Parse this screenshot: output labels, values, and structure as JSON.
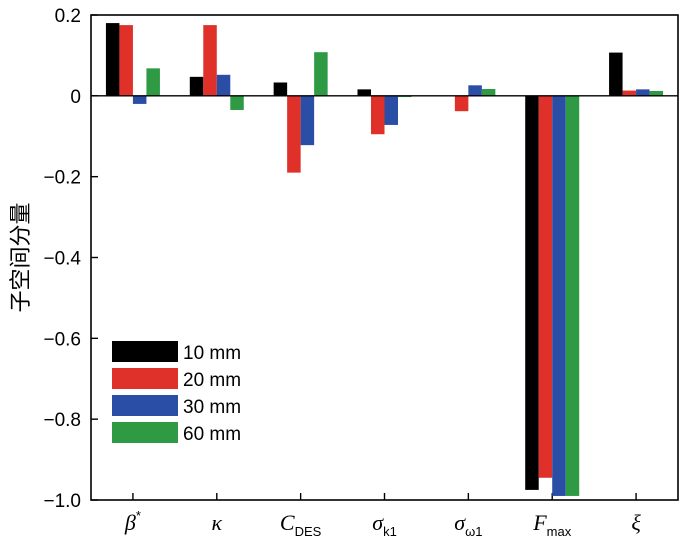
{
  "chart_data": {
    "type": "bar",
    "title": "",
    "xlabel": "",
    "ylabel": "子空间分量",
    "ylim": [
      -1.0,
      0.2
    ],
    "yticks": [
      {
        "value": 0.2,
        "label": "0.2"
      },
      {
        "value": 0.0,
        "label": "0"
      },
      {
        "value": -0.2,
        "label": "−0.2"
      },
      {
        "value": -0.4,
        "label": "−0.4"
      },
      {
        "value": -0.6,
        "label": "−0.6"
      },
      {
        "value": -0.8,
        "label": "−0.8"
      },
      {
        "value": -1.0,
        "label": "−1.0"
      }
    ],
    "categories": [
      {
        "base": "β",
        "sup": "*",
        "sub": ""
      },
      {
        "base": "κ",
        "sup": "",
        "sub": ""
      },
      {
        "base": "C",
        "sup": "",
        "sub": "DES"
      },
      {
        "base": "σ",
        "sup": "",
        "sub": "k1"
      },
      {
        "base": "σ",
        "sup": "",
        "sub": "ω1"
      },
      {
        "base": "F",
        "sup": "",
        "sub": "max"
      },
      {
        "base": "ξ",
        "sup": "",
        "sub": ""
      }
    ],
    "series": [
      {
        "name": "10 mm",
        "color": "#000000",
        "values": [
          0.18,
          0.047,
          0.033,
          0.016,
          0.0,
          -0.975,
          0.107
        ]
      },
      {
        "name": "20 mm",
        "color": "#e0302a",
        "values": [
          0.175,
          0.175,
          -0.19,
          -0.095,
          -0.038,
          -0.945,
          0.013
        ]
      },
      {
        "name": "30 mm",
        "color": "#2a4ea6",
        "values": [
          -0.02,
          0.052,
          -0.122,
          -0.072,
          0.026,
          -0.99,
          0.016
        ]
      },
      {
        "name": "60 mm",
        "color": "#2f9a44",
        "values": [
          0.068,
          -0.035,
          0.108,
          -0.003,
          0.017,
          -0.99,
          0.012
        ]
      }
    ],
    "legend_position": "bottom-left"
  }
}
